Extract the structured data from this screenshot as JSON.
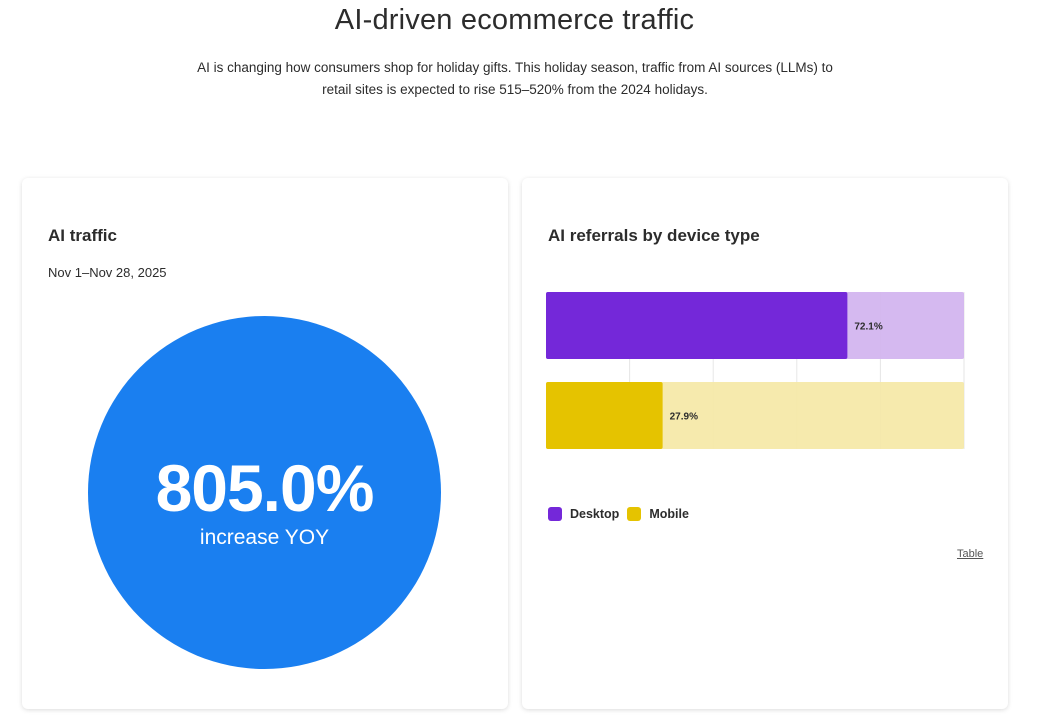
{
  "header": {
    "title": "AI-driven ecommerce traffic",
    "subtitle": "AI is changing how consumers shop for holiday gifts. This holiday season, traffic from AI sources (LLMs) to retail sites is expected to rise 515–520% from the 2024 holidays."
  },
  "ai_traffic_card": {
    "title": "AI traffic",
    "date_range": "Nov 1–Nov 28, 2025",
    "value": "805.0%",
    "caption": "increase YOY",
    "circle_color": "#1a7ff0"
  },
  "device_card": {
    "title": "AI referrals by device type",
    "table_link": "Table",
    "legend": [
      {
        "label": "Desktop",
        "color": "#7428d9"
      },
      {
        "label": "Mobile",
        "color": "#e5c300"
      }
    ]
  },
  "chart_data": {
    "type": "bar",
    "orientation": "horizontal",
    "title": "AI referrals by device type",
    "categories": [
      "Desktop",
      "Mobile"
    ],
    "values": [
      72.1,
      27.9
    ],
    "labels": [
      "72.1%",
      "27.9%"
    ],
    "colors": [
      "#7428d9",
      "#e5c300"
    ],
    "track_colors": [
      "#d1b3ef",
      "#f5e8a6"
    ],
    "xlim": [
      0,
      100
    ],
    "grid": true,
    "legend_position": "bottom-left"
  }
}
